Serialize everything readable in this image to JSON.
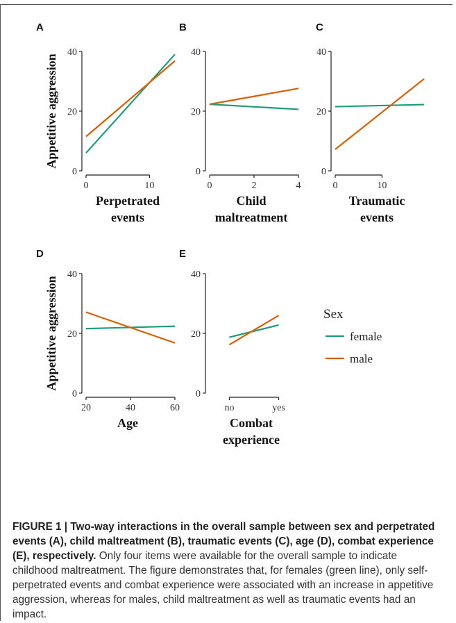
{
  "figure": {
    "caption_bold": "FIGURE 1 | Two-way interactions in the overall sample between sex and perpetrated events (A), child maltreatment (B), traumatic events (C), age (D), combat experience (E), respectively.",
    "caption_text": " Only four items were available for the overall sample to indicate childhood maltreatment. The figure demonstrates that, for females (green line), only self-perpetrated events and combat experience were associated with an increase in appetitive aggression, whereas for males, child maltreatment as well as traumatic events had an impact."
  },
  "colors": {
    "female": "#1b9e77",
    "male": "#d95f02",
    "axis": "#222222"
  },
  "legend": {
    "title": "Sex",
    "items": [
      "female",
      "male"
    ]
  },
  "chart_data": [
    {
      "panel": "A",
      "type": "line",
      "ylabel": "Appetitive aggression",
      "xlabel_lines": [
        "Perpetrated",
        "events"
      ],
      "xlim": [
        0,
        14
      ],
      "ylim": [
        0,
        40
      ],
      "xticks": [
        0,
        10
      ],
      "xtick_labels": [
        "0",
        "10"
      ],
      "yticks": [
        0,
        20,
        40
      ],
      "ytick_labels": [
        "0",
        "20",
        "40"
      ],
      "series": [
        {
          "name": "female",
          "x": [
            0,
            14
          ],
          "y": [
            6,
            39
          ]
        },
        {
          "name": "male",
          "x": [
            0,
            14
          ],
          "y": [
            11.5,
            36.8
          ]
        }
      ]
    },
    {
      "panel": "B",
      "type": "line",
      "ylabel": "",
      "xlabel_lines": [
        "Child",
        "maltreatment"
      ],
      "xlim": [
        0,
        4
      ],
      "ylim": [
        0,
        40
      ],
      "xticks": [
        0,
        2,
        4
      ],
      "xtick_labels": [
        "0",
        "2",
        "4"
      ],
      "yticks": [
        0,
        20,
        40
      ],
      "ytick_labels": [
        "0",
        "20",
        "40"
      ],
      "series": [
        {
          "name": "female",
          "x": [
            0,
            4
          ],
          "y": [
            22.3,
            20.6
          ]
        },
        {
          "name": "male",
          "x": [
            0,
            4
          ],
          "y": [
            22.3,
            27.6
          ]
        }
      ]
    },
    {
      "panel": "C",
      "type": "line",
      "ylabel": "",
      "xlabel_lines": [
        "Traumatic",
        "events"
      ],
      "xlim": [
        0,
        19
      ],
      "ylim": [
        0,
        40
      ],
      "xticks": [
        0,
        10
      ],
      "xtick_labels": [
        "0",
        "10"
      ],
      "yticks": [
        0,
        20,
        40
      ],
      "ytick_labels": [
        "0",
        "20",
        "40"
      ],
      "series": [
        {
          "name": "female",
          "x": [
            0,
            19
          ],
          "y": [
            21.5,
            22.2
          ]
        },
        {
          "name": "male",
          "x": [
            0,
            19
          ],
          "y": [
            7.2,
            30.8
          ]
        }
      ]
    },
    {
      "panel": "D",
      "type": "line",
      "ylabel": "Appetitive aggression",
      "xlabel_lines": [
        "Age"
      ],
      "xlim": [
        20,
        60
      ],
      "ylim": [
        0,
        40
      ],
      "xticks": [
        20,
        40,
        60
      ],
      "xtick_labels": [
        "20",
        "40",
        "60"
      ],
      "yticks": [
        0,
        20,
        40
      ],
      "ytick_labels": [
        "0",
        "20",
        "40"
      ],
      "series": [
        {
          "name": "female",
          "x": [
            20,
            60
          ],
          "y": [
            21.6,
            22.4
          ]
        },
        {
          "name": "male",
          "x": [
            20,
            60
          ],
          "y": [
            27.1,
            16.8
          ]
        }
      ]
    },
    {
      "panel": "E",
      "type": "line",
      "ylabel": "",
      "xlabel_lines": [
        "Combat",
        "experience"
      ],
      "xlim": [
        0.6,
        2.4
      ],
      "ylim": [
        0,
        40
      ],
      "xticks": [
        1,
        2
      ],
      "xtick_labels": [
        "no",
        "yes"
      ],
      "yticks": [
        0,
        20,
        40
      ],
      "ytick_labels": [
        "0",
        "20",
        "40"
      ],
      "series": [
        {
          "name": "female",
          "x": [
            1,
            2
          ],
          "y": [
            18.7,
            22.8
          ]
        },
        {
          "name": "male",
          "x": [
            1,
            2
          ],
          "y": [
            16.2,
            26
          ]
        }
      ]
    }
  ]
}
